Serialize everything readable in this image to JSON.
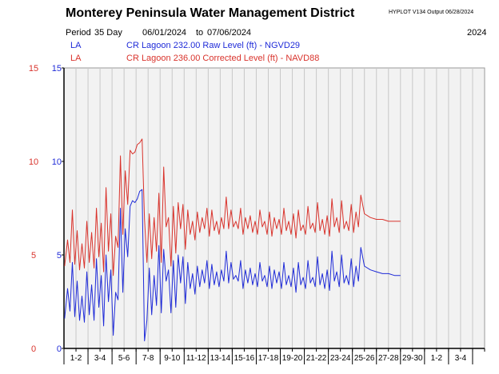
{
  "header": {
    "title": "Monterey Peninsula Water Management District",
    "hyplot": "HYPLOT V134  Output 06/28/2024",
    "period_label": "Period",
    "period_days": "35 Day",
    "date_start": "06/01/2024",
    "date_to": "to",
    "date_end": "07/06/2024",
    "year": "2024"
  },
  "legend": [
    {
      "code": "LA",
      "label": "CR Lagoon  232.00 Raw Level (ft) - NGVD29",
      "color": "#1f2bd8"
    },
    {
      "code": "LA",
      "label": "CR Lagoon  236.00 Corrected Level (ft) - NAVD88",
      "color": "#d9332c"
    }
  ],
  "colors": {
    "blue_axis": "#1f2bd8",
    "red_axis": "#d9332c",
    "plot_bg": "#f2f2f2",
    "grid": "#c8c8c8"
  },
  "chart_data": {
    "type": "line",
    "xlim": [
      0,
      35
    ],
    "ylim": [
      0,
      15
    ],
    "yticks_red": [
      "0",
      "5",
      "10",
      "15"
    ],
    "yticks_blue": [
      "0",
      "5",
      "10",
      "15"
    ],
    "x_tick_labels": [
      "1-2",
      "3-4",
      "5-6",
      "7-8",
      "9-10",
      "11-12",
      "13-14",
      "15-16",
      "17-18",
      "19-20",
      "21-22",
      "23-24",
      "25-26",
      "27-28",
      "29-30",
      "1-2",
      "3-4"
    ],
    "grid": true,
    "legend_position": "top-left",
    "series": [
      {
        "name": "CR Lagoon  232.00 Raw Level (ft) - NGVD29",
        "color": "#1f2bd8",
        "x": [
          0.05,
          0.3,
          0.5,
          0.7,
          0.9,
          1.1,
          1.3,
          1.5,
          1.7,
          1.9,
          2.1,
          2.3,
          2.5,
          2.7,
          2.9,
          3.1,
          3.3,
          3.5,
          3.7,
          3.9,
          4.1,
          4.3,
          4.5,
          4.7,
          4.9,
          5.1,
          5.3,
          5.5,
          5.7,
          5.9,
          6.1,
          6.3,
          6.5,
          6.7,
          6.9,
          7.1,
          7.3,
          7.5,
          7.7,
          7.9,
          8.1,
          8.3,
          8.5,
          8.7,
          8.9,
          9.1,
          9.3,
          9.5,
          9.7,
          9.9,
          10.1,
          10.3,
          10.5,
          10.7,
          10.9,
          11.1,
          11.3,
          11.5,
          11.7,
          11.9,
          12.1,
          12.3,
          12.5,
          12.7,
          12.9,
          13.1,
          13.3,
          13.5,
          13.7,
          13.9,
          14.1,
          14.3,
          14.5,
          14.7,
          14.9,
          15.1,
          15.3,
          15.5,
          15.7,
          15.9,
          16.1,
          16.3,
          16.5,
          16.7,
          16.9,
          17.1,
          17.3,
          17.5,
          17.7,
          17.9,
          18.1,
          18.3,
          18.5,
          18.7,
          18.9,
          19.1,
          19.3,
          19.5,
          19.7,
          19.9,
          20.1,
          20.3,
          20.5,
          20.7,
          20.9,
          21.1,
          21.3,
          21.5,
          21.7,
          21.9,
          22.1,
          22.3,
          22.5,
          22.7,
          22.9,
          23.1,
          23.3,
          23.5,
          23.7,
          23.9,
          24.1,
          24.3,
          24.5,
          24.7,
          25.0,
          25.5,
          26.0,
          26.5,
          27.0,
          27.5,
          28.0
        ],
        "y": [
          1.6,
          3.2,
          2.0,
          4.6,
          1.7,
          3.6,
          1.5,
          2.8,
          1.4,
          4.1,
          1.8,
          3.4,
          1.5,
          4.8,
          2.2,
          3.9,
          1.2,
          5.0,
          2.5,
          4.2,
          0.7,
          3.0,
          2.6,
          7.5,
          3.0,
          6.4,
          4.9,
          7.6,
          7.9,
          7.8,
          8.0,
          8.4,
          8.5,
          0.4,
          1.5,
          4.3,
          1.8,
          3.9,
          2.3,
          5.5,
          1.9,
          5.3,
          3.6,
          4.2,
          1.9,
          4.7,
          2.2,
          5.0,
          3.5,
          4.9,
          2.4,
          4.6,
          3.2,
          4.0,
          2.9,
          4.4,
          3.3,
          4.2,
          3.5,
          4.7,
          3.2,
          4.5,
          3.4,
          4.1,
          3.3,
          4.2,
          3.6,
          5.2,
          3.5,
          4.6,
          3.7,
          3.9,
          3.6,
          4.7,
          3.2,
          4.2,
          3.5,
          4.3,
          3.4,
          4.0,
          3.3,
          4.6,
          3.6,
          3.9,
          3.3,
          4.4,
          3.2,
          4.2,
          3.5,
          4.1,
          3.2,
          4.6,
          3.4,
          3.9,
          3.3,
          4.3,
          3.0,
          4.6,
          3.4,
          3.8,
          3.2,
          4.7,
          3.5,
          3.8,
          3.3,
          4.9,
          3.4,
          4.0,
          3.2,
          4.2,
          3.1,
          5.2,
          3.6,
          4.1,
          3.3,
          5.0,
          3.5,
          3.9,
          3.4,
          4.8,
          3.3,
          4.4,
          3.6,
          5.4,
          4.4,
          4.2,
          4.1,
          4.0,
          4.0,
          3.9,
          3.9
        ]
      },
      {
        "name": "CR Lagoon  236.00 Corrected Level (ft) - NAVD88",
        "color": "#d9332c",
        "x": [
          0.05,
          0.3,
          0.5,
          0.7,
          0.9,
          1.1,
          1.3,
          1.5,
          1.7,
          1.9,
          2.1,
          2.3,
          2.5,
          2.7,
          2.9,
          3.1,
          3.3,
          3.5,
          3.7,
          3.9,
          4.1,
          4.3,
          4.5,
          4.7,
          4.9,
          5.1,
          5.3,
          5.5,
          5.7,
          5.9,
          6.1,
          6.3,
          6.5,
          6.7,
          6.9,
          7.1,
          7.3,
          7.5,
          7.7,
          7.9,
          8.1,
          8.3,
          8.5,
          8.7,
          8.9,
          9.1,
          9.3,
          9.5,
          9.7,
          9.9,
          10.1,
          10.3,
          10.5,
          10.7,
          10.9,
          11.1,
          11.3,
          11.5,
          11.7,
          11.9,
          12.1,
          12.3,
          12.5,
          12.7,
          12.9,
          13.1,
          13.3,
          13.5,
          13.7,
          13.9,
          14.1,
          14.3,
          14.5,
          14.7,
          14.9,
          15.1,
          15.3,
          15.5,
          15.7,
          15.9,
          16.1,
          16.3,
          16.5,
          16.7,
          16.9,
          17.1,
          17.3,
          17.5,
          17.7,
          17.9,
          18.1,
          18.3,
          18.5,
          18.7,
          18.9,
          19.1,
          19.3,
          19.5,
          19.7,
          19.9,
          20.1,
          20.3,
          20.5,
          20.7,
          20.9,
          21.1,
          21.3,
          21.5,
          21.7,
          21.9,
          22.1,
          22.3,
          22.5,
          22.7,
          22.9,
          23.1,
          23.3,
          23.5,
          23.7,
          23.9,
          24.1,
          24.3,
          24.5,
          24.7,
          25.0,
          25.5,
          26.0,
          26.5,
          27.0,
          27.5,
          28.0
        ],
        "y": [
          4.4,
          5.8,
          4.6,
          7.4,
          4.5,
          6.3,
          4.2,
          5.6,
          4.3,
          6.8,
          4.6,
          6.2,
          4.3,
          7.5,
          4.9,
          6.7,
          4.1,
          8.6,
          5.2,
          7.2,
          3.9,
          6.0,
          5.4,
          10.3,
          6.1,
          9.5,
          7.7,
          10.6,
          10.4,
          10.5,
          10.9,
          11.0,
          11.2,
          6.9,
          4.6,
          7.2,
          4.8,
          7.0,
          5.2,
          8.3,
          4.6,
          9.7,
          6.5,
          7.0,
          4.4,
          7.6,
          5.1,
          7.8,
          6.4,
          7.7,
          5.3,
          7.4,
          6.1,
          6.8,
          5.8,
          7.3,
          6.2,
          7.0,
          6.4,
          7.5,
          6.0,
          7.4,
          6.3,
          6.8,
          6.1,
          7.0,
          6.4,
          8.1,
          6.4,
          7.4,
          6.5,
          6.8,
          6.4,
          7.5,
          6.1,
          7.0,
          6.4,
          7.1,
          6.2,
          6.8,
          6.1,
          7.4,
          6.5,
          6.8,
          6.1,
          7.3,
          6.0,
          7.0,
          6.4,
          6.9,
          6.1,
          7.5,
          6.3,
          6.8,
          6.1,
          7.2,
          5.9,
          7.4,
          6.3,
          6.6,
          6.1,
          7.6,
          6.4,
          6.7,
          6.2,
          7.8,
          6.3,
          6.9,
          6.1,
          7.1,
          6.0,
          8.0,
          6.5,
          7.0,
          6.2,
          7.9,
          6.4,
          6.8,
          6.3,
          7.7,
          6.2,
          7.3,
          6.5,
          8.2,
          7.2,
          7.0,
          6.9,
          6.9,
          6.8,
          6.8,
          6.8
        ]
      }
    ]
  }
}
